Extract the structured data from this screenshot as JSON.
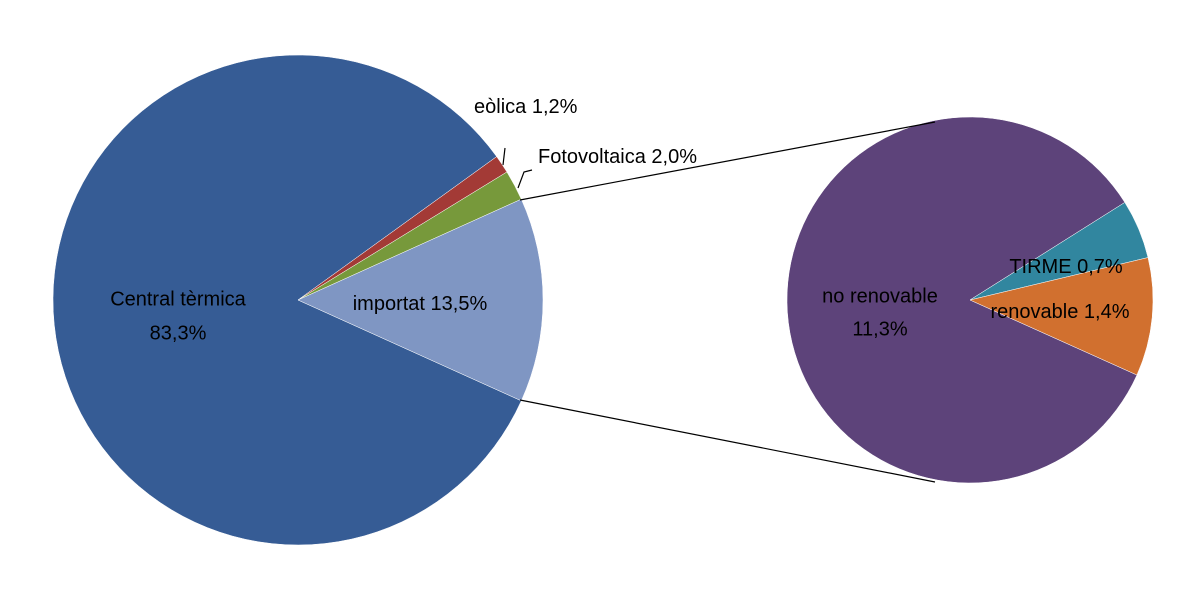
{
  "chart_data": [
    {
      "type": "pie",
      "categories": [
        "Central tèrmica",
        "eòlica",
        "Fotovoltaica",
        "importat"
      ],
      "values": [
        83.3,
        1.2,
        2.0,
        13.5
      ],
      "value_labels": [
        "83,3%",
        "1,2%",
        "2,0%",
        "13,5%"
      ],
      "colors": [
        "#365c95",
        "#a33a36",
        "#77993b",
        "#7f96c3"
      ]
    },
    {
      "type": "pie",
      "categories": [
        "no renovable",
        "TIRME",
        "renovable"
      ],
      "values": [
        11.3,
        0.7,
        1.4
      ],
      "value_labels": [
        "11,3%",
        "0,7%",
        "1,4%"
      ],
      "colors": [
        "#5d437a",
        "#31869f",
        "#d1702f"
      ]
    }
  ]
}
